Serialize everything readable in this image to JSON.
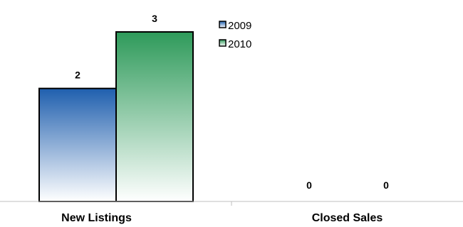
{
  "chart_data": {
    "type": "bar",
    "categories": [
      "New Listings",
      "Closed Sales"
    ],
    "series": [
      {
        "name": "2009",
        "values": [
          2,
          0
        ],
        "color_top": "#1f5fae",
        "color_bottom": "#ffffff"
      },
      {
        "name": "2010",
        "values": [
          3,
          0
        ],
        "color_top": "#2e9a5a",
        "color_bottom": "#ffffff"
      }
    ],
    "ylim": [
      0,
      3
    ],
    "grid": false,
    "legend_position": "top-center",
    "data_labels": true
  }
}
